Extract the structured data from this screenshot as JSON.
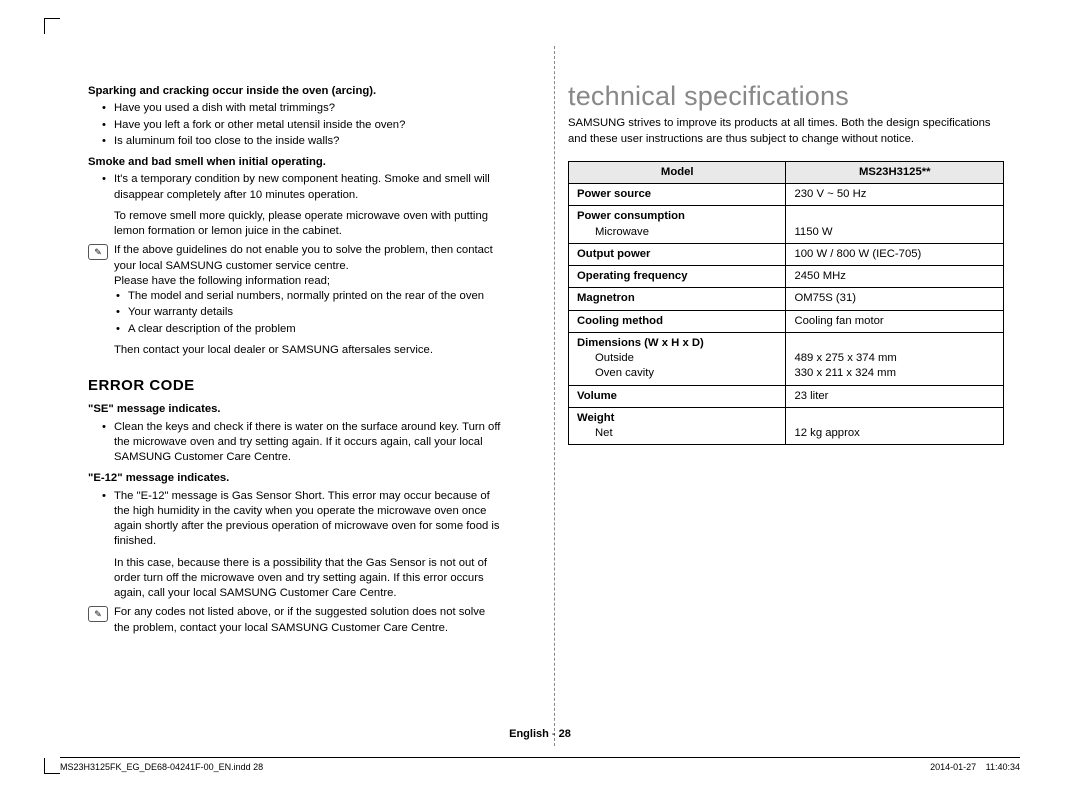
{
  "left": {
    "sparking": {
      "title": "Sparking and cracking occur inside the oven (arcing).",
      "items": [
        "Have you used a dish with metal trimmings?",
        "Have you left a fork or other metal utensil inside the oven?",
        "Is aluminum foil too close to the inside walls?"
      ]
    },
    "smoke": {
      "title": "Smoke and bad smell when initial operating.",
      "bullet1": "It's a temporary condition by new component heating. Smoke and smell will disappear completely after 10 minutes operation.",
      "para": "To remove smell more quickly, please operate microwave oven with putting lemon formation or lemon juice in the cabinet."
    },
    "note1": {
      "p1": "If the above guidelines do not enable you to solve the problem, then contact your local SAMSUNG customer service centre.",
      "p2": "Please have the following information read;",
      "items": [
        "The model and serial numbers, normally printed on the rear of the oven",
        "Your warranty details",
        "A clear description of the problem"
      ],
      "p3": "Then contact your local dealer or SAMSUNG aftersales service."
    },
    "errorHeading": "ERROR CODE",
    "se": {
      "title": "\"SE\" message indicates.",
      "bullet": "Clean the keys and check if there is water on the surface around key. Turn off the microwave oven and try setting again. If it occurs again, call your local SAMSUNG Customer Care Centre."
    },
    "e12": {
      "title": "\"E-12\" message indicates.",
      "bullet": "The \"E-12\" message is Gas Sensor Short. This error may occur because of the high humidity in the cavity when you operate the microwave oven once again shortly after the previous operation of microwave oven for some food is finished.",
      "para": "In this case, because there is a possibility that the Gas Sensor is not out of order turn off the microwave oven and try setting again. If this error occurs again, call your local SAMSUNG Customer Care Centre."
    },
    "note2": "For any codes not listed above, or if the suggested solution does not solve the problem, contact your local SAMSUNG Customer Care Centre."
  },
  "right": {
    "heading": "technical specifications",
    "intro": "SAMSUNG strives to improve its products at all times. Both the design specifications and these user instructions are thus subject to change without notice.",
    "table": {
      "header": {
        "l": "Model",
        "r": "MS23H3125**"
      },
      "rows": [
        {
          "l": "Power source",
          "r": "230 V ~ 50 Hz"
        },
        {
          "l_html": "<b>Power consumption</b><span class=\"cell-sub\">Microwave</span>",
          "r_html": "<br>1150 W"
        },
        {
          "l": "Output power",
          "r": "100 W / 800 W (IEC-705)"
        },
        {
          "l": "Operating frequency",
          "r": "2450 MHz"
        },
        {
          "l": "Magnetron",
          "r": "OM75S (31)"
        },
        {
          "l": "Cooling method",
          "r": "Cooling fan motor"
        },
        {
          "l_html": "<b>Dimensions (W x H x D)</b><span class=\"cell-sub\">Outside</span><span class=\"cell-sub\">Oven cavity</span>",
          "r_html": "<br>489 x 275 x 374 mm<br>330 x 211 x 324 mm"
        },
        {
          "l": "Volume",
          "r": "23 liter"
        },
        {
          "l_html": "<b>Weight</b><span class=\"cell-sub\">Net</span>",
          "r_html": "<br>12 kg approx"
        }
      ]
    }
  },
  "footer": {
    "lang": "English",
    "page": "28",
    "file": "MS23H3125FK_EG_DE68-04241F-00_EN.indd   28",
    "time": "2014-01-27     11:40:34"
  },
  "style": {
    "heading_color": "#888888",
    "th_bg": "#e9e9e9",
    "border_color": "#000000"
  }
}
